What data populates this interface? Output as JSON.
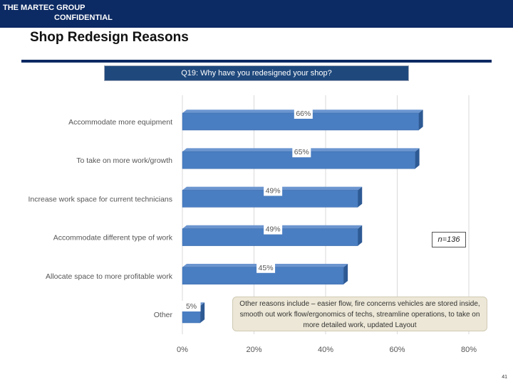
{
  "header": {
    "brand_line1": "THE MARTEC GROUP",
    "brand_line2": "CONFIDENTIAL",
    "title": "Shop Redesign Reasons",
    "colors": {
      "bar": "#0c2a63",
      "question_box": "#1f497d"
    }
  },
  "question": "Q19: Why have you redesigned your shop?",
  "sample": "n=136",
  "note": "Other reasons include – easier flow, fire concerns vehicles are stored inside, smooth out work flow/ergonomics of techs, streamline operations, to take on more detailed work, updated Layout",
  "page_number": "41",
  "chart_data": {
    "type": "bar",
    "orientation": "horizontal",
    "title": "Q19: Why have you redesigned your shop?",
    "categories": [
      "Accommodate more equipment",
      "To take on more work/growth",
      "Increase work space for current technicians",
      "Accommodate different type of work",
      "Allocate space to more profitable work",
      "Other"
    ],
    "values": [
      66,
      65,
      49,
      49,
      45,
      5
    ],
    "value_labels": [
      "66%",
      "65%",
      "49%",
      "49%",
      "45%",
      "5%"
    ],
    "xlim": [
      0,
      80
    ],
    "xticks": [
      0,
      20,
      40,
      60,
      80
    ],
    "xtick_labels": [
      "0%",
      "20%",
      "40%",
      "60%",
      "80%"
    ],
    "grid": true,
    "bar_color": "#4a7ec2",
    "bar_side_color": "#2e5a94"
  }
}
